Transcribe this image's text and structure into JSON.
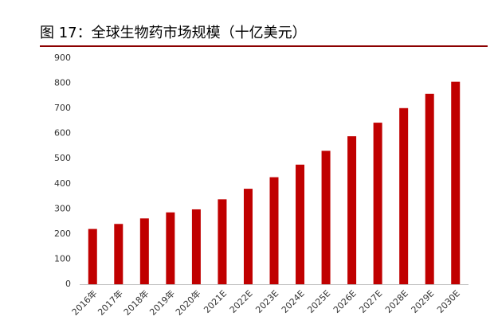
{
  "chart_data": {
    "type": "bar",
    "title": "图 17：全球生物药市场规模（十亿美元）",
    "categories": [
      "2016年",
      "2017年",
      "2018年",
      "2019年",
      "2020年",
      "2021E",
      "2022E",
      "2023E",
      "2024E",
      "2025E",
      "2026E",
      "2027E",
      "2028E",
      "2029E",
      "2030E"
    ],
    "values": [
      220,
      240,
      262,
      286,
      298,
      338,
      380,
      426,
      476,
      531,
      589,
      643,
      701,
      758,
      806
    ],
    "color": "#c00000",
    "ylim": [
      0,
      900
    ],
    "yticks": [
      0,
      100,
      200,
      300,
      400,
      500,
      600,
      700,
      800,
      900
    ],
    "grid": false
  }
}
